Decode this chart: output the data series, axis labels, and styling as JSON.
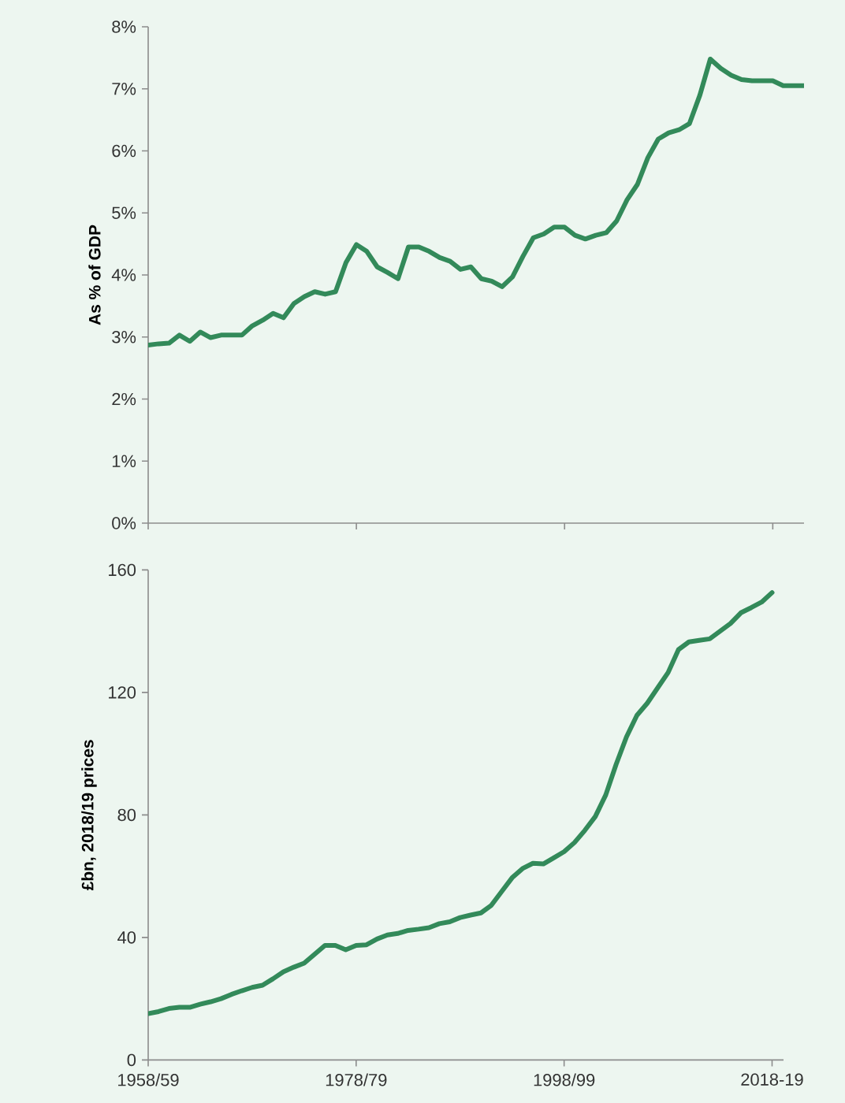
{
  "chart_data": [
    {
      "type": "line",
      "ylabel": "As % of GDP",
      "color": "#338a5a",
      "tick_labels": "y",
      "categories": [
        "1958/59",
        null,
        null,
        null,
        null,
        null,
        null,
        null,
        null,
        null,
        null,
        null,
        null,
        null,
        null,
        null,
        null,
        null,
        null,
        null,
        "1978/79",
        null,
        null,
        null,
        null,
        null,
        null,
        null,
        null,
        null,
        null,
        null,
        null,
        null,
        null,
        null,
        null,
        null,
        null,
        null,
        "1998/99",
        null,
        null,
        null,
        null,
        null,
        null,
        null,
        null,
        null,
        null,
        null,
        null,
        null,
        null,
        null,
        null,
        null,
        null,
        null,
        "2018-19",
        null,
        null,
        null
      ],
      "values": [
        2.87,
        2.89,
        2.9,
        3.03,
        2.93,
        3.08,
        2.99,
        3.03,
        3.03,
        3.03,
        3.18,
        3.27,
        3.38,
        3.31,
        3.54,
        3.65,
        3.73,
        3.69,
        3.73,
        4.2,
        4.49,
        4.38,
        4.13,
        4.04,
        3.94,
        4.45,
        4.45,
        4.38,
        4.28,
        4.22,
        4.09,
        4.13,
        3.94,
        3.9,
        3.81,
        3.97,
        4.3,
        4.6,
        4.66,
        4.77,
        4.77,
        4.64,
        4.58,
        4.64,
        4.68,
        4.87,
        5.21,
        5.46,
        5.89,
        6.19,
        6.29,
        6.34,
        6.44,
        6.9,
        7.48,
        7.33,
        7.22,
        7.15,
        7.13,
        7.13,
        7.13,
        7.05,
        7.05,
        7.05
      ],
      "ylim": [
        0,
        8
      ],
      "yticks": [
        {
          "value": 0,
          "label": "0%"
        },
        {
          "value": 1,
          "label": "1%"
        },
        {
          "value": 2,
          "label": "2%"
        },
        {
          "value": 3,
          "label": "3%"
        },
        {
          "value": 4,
          "label": "4%"
        },
        {
          "value": 5,
          "label": "5%"
        },
        {
          "value": 6,
          "label": "6%"
        },
        {
          "value": 7,
          "label": "7%"
        },
        {
          "value": 8,
          "label": "8%"
        }
      ]
    },
    {
      "type": "line",
      "ylabel": "£bn, 2018/19  prices",
      "color": "#338a5a",
      "categories": [
        "1958/59",
        null,
        null,
        null,
        null,
        null,
        null,
        null,
        null,
        null,
        null,
        null,
        null,
        null,
        null,
        null,
        null,
        null,
        null,
        null,
        "1978/79",
        null,
        null,
        null,
        null,
        null,
        null,
        null,
        null,
        null,
        null,
        null,
        null,
        null,
        null,
        null,
        null,
        null,
        null,
        null,
        "1998/99",
        null,
        null,
        null,
        null,
        null,
        null,
        null,
        null,
        null,
        null,
        null,
        null,
        null,
        null,
        null,
        null,
        null,
        null,
        null,
        "2018-19"
      ],
      "values": [
        15.1,
        15.8,
        16.8,
        17.2,
        17.2,
        18.2,
        19.0,
        20.0,
        21.4,
        22.6,
        23.7,
        24.4,
        26.5,
        28.8,
        30.3,
        31.6,
        34.5,
        37.4,
        37.4,
        36.0,
        37.4,
        37.6,
        39.5,
        40.8,
        41.3,
        42.3,
        42.7,
        43.2,
        44.5,
        45.1,
        46.5,
        47.3,
        48.0,
        50.5,
        55.0,
        59.5,
        62.5,
        64.2,
        64.0,
        66.0,
        68.0,
        71.0,
        75.0,
        79.5,
        86.5,
        96.5,
        105.5,
        112.5,
        116.5,
        121.5,
        126.5,
        134.0,
        136.5,
        137.0,
        137.5,
        140.0,
        142.5,
        146.0,
        147.7,
        149.5,
        152.6
      ],
      "ylim": [
        0,
        160
      ],
      "yticks": [
        0,
        40,
        80,
        120,
        160
      ]
    }
  ]
}
